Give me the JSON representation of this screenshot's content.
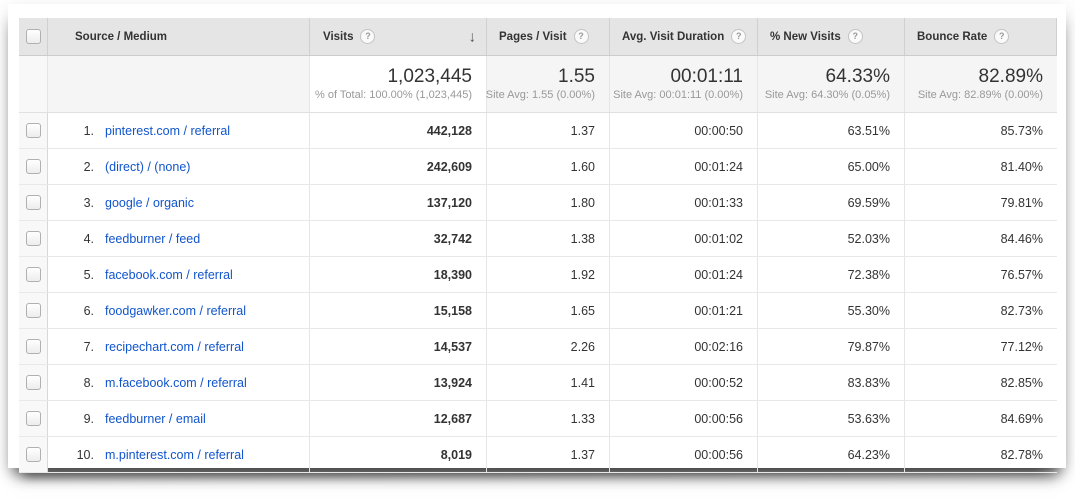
{
  "colors": {
    "link_blue": "#1155cc",
    "header_bg": "#e5e5e5",
    "summary_bg": "#f5f5f5",
    "checkbox_col_bg": "#f8f8f8",
    "text_dark": "#333333",
    "subtext_gray": "#999999"
  },
  "icons": {
    "help": "?",
    "sort_desc": "↓"
  },
  "table": {
    "columns": [
      {
        "label": "Source / Medium"
      },
      {
        "label": "Visits",
        "sorted": "desc"
      },
      {
        "label": "Pages / Visit"
      },
      {
        "label": "Avg. Visit Duration"
      },
      {
        "label": "% New Visits"
      },
      {
        "label": "Bounce Rate"
      }
    ],
    "summary": {
      "visits": "1,023,445",
      "visits_sub": "% of Total: 100.00% (1,023,445)",
      "pages": "1.55",
      "pages_sub": "Site Avg: 1.55 (0.00%)",
      "duration": "00:01:11",
      "duration_sub": "Site Avg: 00:01:11 (0.00%)",
      "new_visits": "64.33%",
      "new_visits_sub": "Site Avg: 64.30% (0.05%)",
      "bounce": "82.89%",
      "bounce_sub": "Site Avg: 82.89% (0.00%)"
    },
    "rows": [
      {
        "rank": "1.",
        "source": "pinterest.com / referral",
        "visits": "442,128",
        "pages": "1.37",
        "duration": "00:00:50",
        "new_visits": "63.51%",
        "bounce": "85.73%"
      },
      {
        "rank": "2.",
        "source": "(direct) / (none)",
        "visits": "242,609",
        "pages": "1.60",
        "duration": "00:01:24",
        "new_visits": "65.00%",
        "bounce": "81.40%"
      },
      {
        "rank": "3.",
        "source": "google / organic",
        "visits": "137,120",
        "pages": "1.80",
        "duration": "00:01:33",
        "new_visits": "69.59%",
        "bounce": "79.81%"
      },
      {
        "rank": "4.",
        "source": "feedburner / feed",
        "visits": "32,742",
        "pages": "1.38",
        "duration": "00:01:02",
        "new_visits": "52.03%",
        "bounce": "84.46%"
      },
      {
        "rank": "5.",
        "source": "facebook.com / referral",
        "visits": "18,390",
        "pages": "1.92",
        "duration": "00:01:24",
        "new_visits": "72.38%",
        "bounce": "76.57%"
      },
      {
        "rank": "6.",
        "source": "foodgawker.com / referral",
        "visits": "15,158",
        "pages": "1.65",
        "duration": "00:01:21",
        "new_visits": "55.30%",
        "bounce": "82.73%"
      },
      {
        "rank": "7.",
        "source": "recipechart.com / referral",
        "visits": "14,537",
        "pages": "2.26",
        "duration": "00:02:16",
        "new_visits": "79.87%",
        "bounce": "77.12%"
      },
      {
        "rank": "8.",
        "source": "m.facebook.com / referral",
        "visits": "13,924",
        "pages": "1.41",
        "duration": "00:00:52",
        "new_visits": "83.83%",
        "bounce": "82.85%"
      },
      {
        "rank": "9.",
        "source": "feedburner / email",
        "visits": "12,687",
        "pages": "1.33",
        "duration": "00:00:56",
        "new_visits": "53.63%",
        "bounce": "84.69%"
      },
      {
        "rank": "10.",
        "source": "m.pinterest.com / referral",
        "visits": "8,019",
        "pages": "1.37",
        "duration": "00:00:56",
        "new_visits": "64.23%",
        "bounce": "82.78%"
      }
    ]
  }
}
